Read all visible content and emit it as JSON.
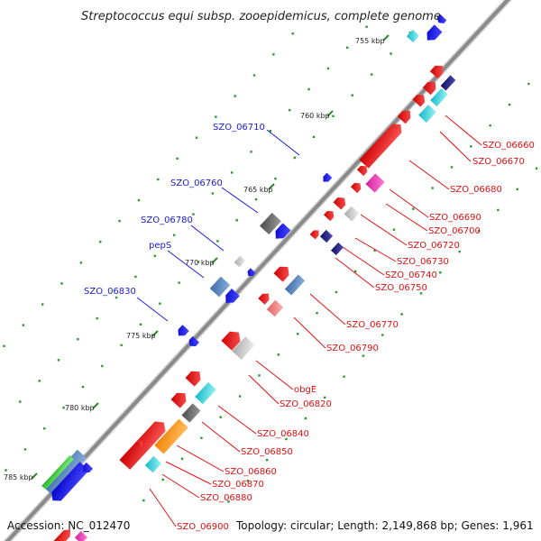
{
  "title": "Streptococcus equi subsp. zooepidemicus, complete genome",
  "footer": {
    "accession": "Accession: NC_012470",
    "topology": "Topology: circular; Length: 2,149,868 bp; Genes: 1,961"
  },
  "colors": {
    "backbone": "#8a8a8a",
    "forward_gene": "#1010e8",
    "reverse_gene": "#ee1414",
    "left_label": "#1a1ad6",
    "right_label": "#e01010",
    "tick": "#2a8a2a",
    "dot": "#2a9a2a"
  },
  "scale_ticks": [
    {
      "label": "755 kbp"
    },
    {
      "label": "760 kbp"
    },
    {
      "label": "765 kbp"
    },
    {
      "label": "770 kbp"
    },
    {
      "label": "775 kbp"
    },
    {
      "label": "780 kbp"
    },
    {
      "label": "785 kbp"
    }
  ],
  "left_labels": [
    {
      "text": "SZO_06710"
    },
    {
      "text": "SZO_06760"
    },
    {
      "text": "SZO_06780"
    },
    {
      "text": "pepS"
    },
    {
      "text": "SZO_06830"
    }
  ],
  "right_labels": [
    {
      "text": "SZO_06660"
    },
    {
      "text": "SZO_06670"
    },
    {
      "text": "SZO_06680"
    },
    {
      "text": "SZO_06690"
    },
    {
      "text": "SZO_06700"
    },
    {
      "text": "SZO_06720"
    },
    {
      "text": "SZO_06730"
    },
    {
      "text": "SZO_06740"
    },
    {
      "text": "SZO_06750"
    },
    {
      "text": "SZO_06770"
    },
    {
      "text": "SZO_06790"
    },
    {
      "text": "obgE"
    },
    {
      "text": "SZO_06820"
    },
    {
      "text": "SZO_06840"
    },
    {
      "text": "SZO_06850"
    },
    {
      "text": "SZO_06860"
    },
    {
      "text": "SZO_06870"
    },
    {
      "text": "SZO_06880"
    },
    {
      "text": "SZO_06900"
    }
  ]
}
